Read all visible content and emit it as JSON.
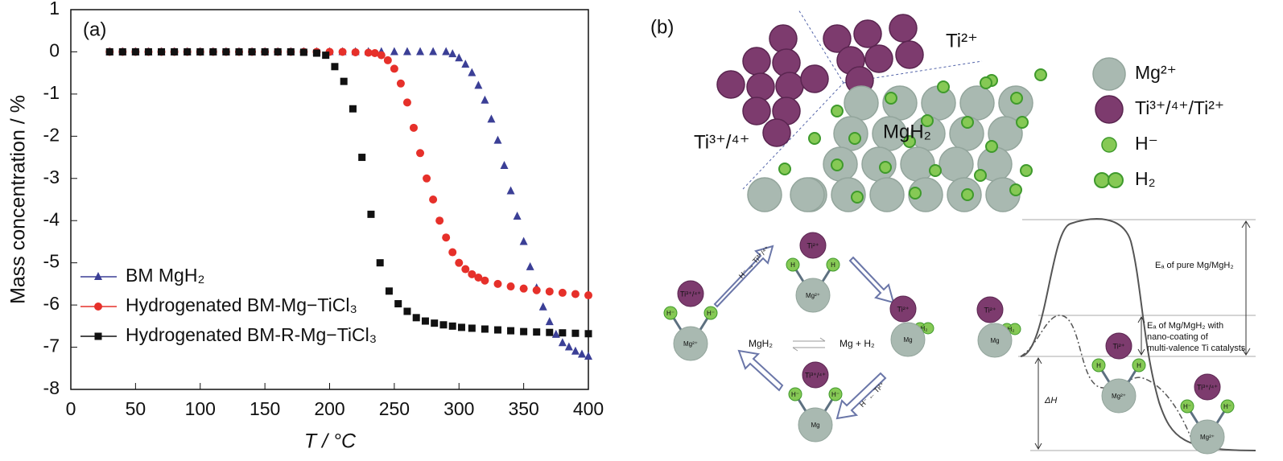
{
  "chart_data": {
    "type": "scatter",
    "annotation": "(a)",
    "x_label": "T / °C",
    "y_label": "Mass concentration / %",
    "xlim": [
      0,
      400
    ],
    "xticks": [
      0,
      50,
      100,
      150,
      200,
      250,
      300,
      350,
      400
    ],
    "ylim": [
      -8,
      1
    ],
    "yticks": [
      -8,
      -7,
      -6,
      -5,
      -4,
      -3,
      -2,
      -1,
      0,
      1
    ],
    "legend": "lower left",
    "series": [
      {
        "name": "BM MgH₂",
        "color": "#3b3f96",
        "marker": "triangle",
        "x": [
          30,
          40,
          50,
          60,
          70,
          80,
          90,
          100,
          110,
          120,
          130,
          140,
          150,
          160,
          170,
          180,
          190,
          200,
          210,
          220,
          230,
          240,
          250,
          260,
          270,
          280,
          290,
          295,
          300,
          305,
          310,
          315,
          320,
          325,
          330,
          335,
          340,
          345,
          350,
          355,
          360,
          365,
          370,
          375,
          380,
          385,
          390,
          395,
          400
        ],
        "values": [
          0,
          0,
          0,
          0,
          0,
          0,
          0,
          0,
          0,
          0,
          0,
          0,
          0,
          0,
          0,
          0,
          0,
          0,
          0,
          0,
          0,
          0,
          0,
          0,
          0,
          0,
          0,
          -0.05,
          -0.15,
          -0.3,
          -0.5,
          -0.8,
          -1.15,
          -1.6,
          -2.1,
          -2.7,
          -3.3,
          -3.9,
          -4.5,
          -5.1,
          -5.6,
          -6.05,
          -6.4,
          -6.7,
          -6.9,
          -7.0,
          -7.1,
          -7.17,
          -7.22
        ]
      },
      {
        "name": "Hydrogenated BM-Mg−TiCl₃",
        "color": "#e6302a",
        "marker": "circle",
        "x": [
          30,
          40,
          50,
          60,
          70,
          80,
          90,
          100,
          110,
          120,
          130,
          140,
          150,
          160,
          170,
          180,
          190,
          200,
          210,
          220,
          230,
          235,
          240,
          245,
          250,
          255,
          260,
          265,
          270,
          275,
          280,
          285,
          290,
          295,
          300,
          305,
          310,
          315,
          320,
          330,
          340,
          350,
          360,
          370,
          380,
          390,
          400
        ],
        "values": [
          0,
          0,
          0,
          0,
          0,
          0,
          0,
          0,
          0,
          0,
          0,
          0,
          0,
          0,
          0,
          0,
          0,
          0,
          0,
          -0.01,
          -0.02,
          -0.03,
          -0.08,
          -0.2,
          -0.4,
          -0.75,
          -1.2,
          -1.8,
          -2.4,
          -3.0,
          -3.5,
          -4.0,
          -4.4,
          -4.75,
          -5.0,
          -5.15,
          -5.27,
          -5.35,
          -5.42,
          -5.5,
          -5.56,
          -5.61,
          -5.65,
          -5.68,
          -5.71,
          -5.74,
          -5.77
        ]
      },
      {
        "name": "Hydrogenated BM-R-Mg−TiCl₃",
        "color": "#111111",
        "marker": "square",
        "x": [
          30,
          40,
          50,
          60,
          70,
          80,
          90,
          100,
          110,
          120,
          130,
          140,
          150,
          160,
          170,
          180,
          190,
          197,
          204,
          211,
          218,
          225,
          232,
          239,
          246,
          253,
          260,
          267,
          274,
          281,
          288,
          295,
          302,
          310,
          320,
          330,
          340,
          350,
          360,
          370,
          380,
          390,
          400
        ],
        "values": [
          0,
          0,
          0,
          0,
          0,
          0,
          0,
          0,
          0,
          0,
          0,
          0,
          0,
          0,
          0,
          -0.01,
          -0.03,
          -0.08,
          -0.35,
          -0.7,
          -1.35,
          -2.5,
          -3.85,
          -5.0,
          -5.67,
          -5.97,
          -6.15,
          -6.3,
          -6.38,
          -6.43,
          -6.47,
          -6.5,
          -6.53,
          -6.55,
          -6.57,
          -6.59,
          -6.61,
          -6.63,
          -6.64,
          -6.65,
          -6.66,
          -6.67,
          -6.68
        ]
      }
    ]
  },
  "diagram": {
    "label": "(b)",
    "lattice_labels": [
      "Ti²⁺",
      "Ti³⁺/⁴⁺",
      "MgH₂"
    ],
    "legend": [
      "Mg²⁺",
      "Ti³⁺/⁴⁺/Ti²⁺",
      "H⁻",
      "H₂"
    ],
    "equation": [
      "MgH₂",
      "Mg + H₂"
    ],
    "arrow_labels": [
      "H⁻ → Ti³⁺/⁴⁺",
      "H⁻ ← Ti²⁺"
    ],
    "cycle_nodes": [
      [
        "Ti³⁺/⁴⁺",
        "H⁻",
        "H⁻",
        "Mg²⁺"
      ],
      [
        "Ti²⁺",
        "H",
        "H",
        "Mg²⁺"
      ],
      [
        "Ti²⁺",
        "H₂",
        "Mg"
      ],
      [
        "Ti³⁺/⁴⁺",
        "H⁻",
        "H⁻",
        "Mg"
      ]
    ],
    "energy_nodes": [
      [
        "Ti²⁺",
        "H₂",
        "Mg"
      ],
      [
        "Ti²⁺",
        "H",
        "H",
        "Mg²⁺"
      ],
      [
        "Ti³⁺/⁴⁺",
        "H⁻",
        "H⁻",
        "Mg²⁺"
      ]
    ],
    "energy_labels": [
      "Eₐ of pure Mg/MgH₂",
      "Eₐ of Mg/MgH₂ with",
      "nano-coating of",
      "multi-valence Ti catalysts",
      "ΔH"
    ]
  }
}
